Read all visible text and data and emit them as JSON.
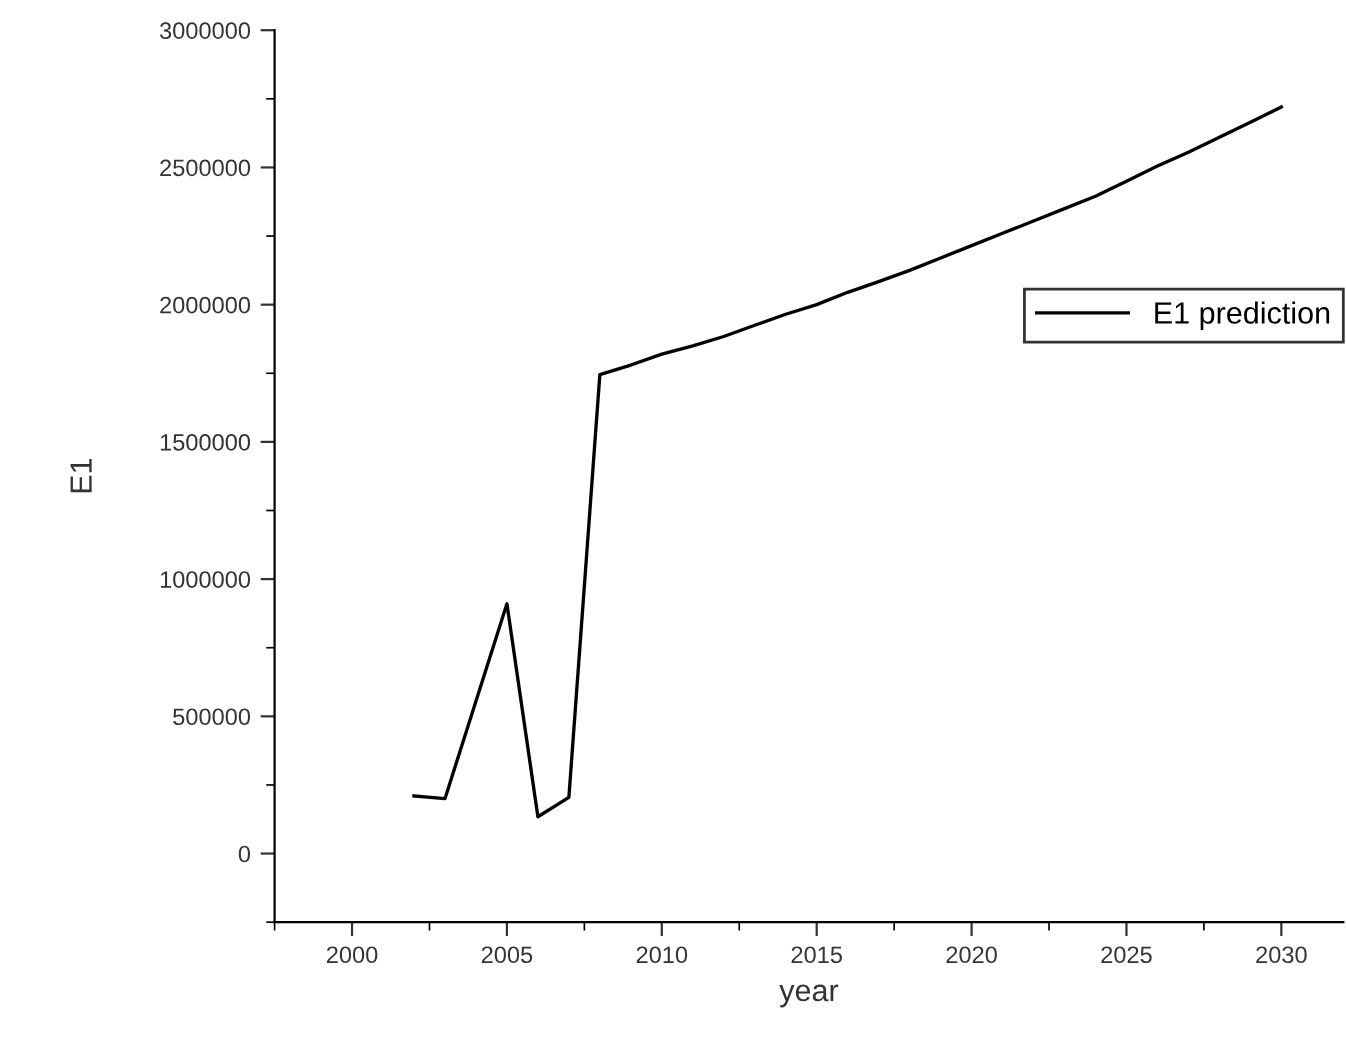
{
  "chart_data": {
    "type": "line",
    "xlabel": "year",
    "ylabel": "E1",
    "x": [
      2002,
      2003,
      2004,
      2005,
      2006,
      2007,
      2008,
      2009,
      2010,
      2011,
      2012,
      2013,
      2014,
      2015,
      2016,
      2017,
      2018,
      2019,
      2020,
      2021,
      2022,
      2023,
      2024,
      2025,
      2026,
      2027,
      2028,
      2029,
      2030
    ],
    "series": [
      {
        "name": "E1 prediction",
        "color": "#000000",
        "values": [
          210000,
          200000,
          555000,
          910000,
          134000,
          205000,
          1745000,
          1780000,
          1820000,
          1850000,
          1884000,
          1925000,
          1965000,
          2000000,
          2045000,
          2084000,
          2125000,
          2170000,
          2215000,
          2260000,
          2305000,
          2350000,
          2395000,
          2450000,
          2505000,
          2555000,
          2610000,
          2665000,
          2720000
        ]
      }
    ],
    "xlim": [
      1997.5,
      2032
    ],
    "ylim": [
      -250000,
      3000000
    ],
    "xticks": [
      2000,
      2005,
      2010,
      2015,
      2020,
      2025,
      2030
    ],
    "yticks": [
      0,
      500000,
      1000000,
      1500000,
      2000000,
      2500000,
      3000000
    ],
    "legend": "right",
    "grid": false,
    "marker": "none",
    "line_style": "solid"
  }
}
